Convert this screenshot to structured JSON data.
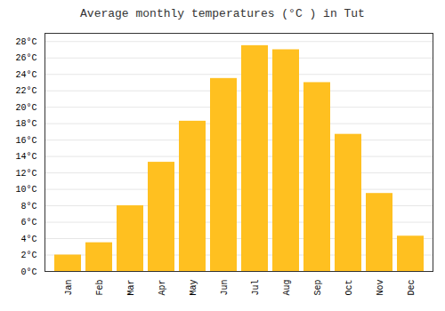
{
  "chart_data": {
    "type": "bar",
    "title": "Average monthly temperatures (°C ) in Tut",
    "categories": [
      "Jan",
      "Feb",
      "Mar",
      "Apr",
      "May",
      "Jun",
      "Jul",
      "Aug",
      "Sep",
      "Oct",
      "Nov",
      "Dec"
    ],
    "values": [
      2,
      3.5,
      8,
      13.3,
      18.3,
      23.5,
      27.5,
      27,
      23,
      16.7,
      9.5,
      4.3
    ],
    "color": "#FFC020",
    "ylim": [
      0,
      29
    ],
    "yticks": [
      {
        "value": 0,
        "label": "0°C"
      },
      {
        "value": 2,
        "label": "2°C"
      },
      {
        "value": 4,
        "label": "4°C"
      },
      {
        "value": 6,
        "label": "6°C"
      },
      {
        "value": 8,
        "label": "8°C"
      },
      {
        "value": 10,
        "label": "10°C"
      },
      {
        "value": 12,
        "label": "12°C"
      },
      {
        "value": 14,
        "label": "14°C"
      },
      {
        "value": 16,
        "label": "16°C"
      },
      {
        "value": 18,
        "label": "18°C"
      },
      {
        "value": 20,
        "label": "20°C"
      },
      {
        "value": 22,
        "label": "22°C"
      },
      {
        "value": 24,
        "label": "24°C"
      },
      {
        "value": 26,
        "label": "26°C"
      },
      {
        "value": 28,
        "label": "28°C"
      }
    ],
    "grid": true
  }
}
